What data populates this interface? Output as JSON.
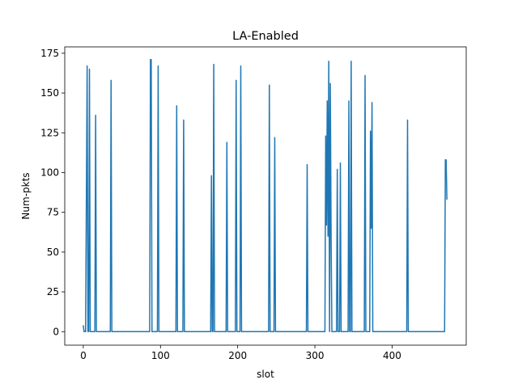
{
  "chart_data": {
    "type": "line",
    "title": "LA-Enabled",
    "xlabel": "slot",
    "ylabel": "Num-pkts",
    "xlim": [
      -24,
      496
    ],
    "ylim": [
      -8.5,
      179
    ],
    "xticks": [
      0,
      100,
      200,
      300,
      400
    ],
    "yticks": [
      0,
      25,
      50,
      75,
      100,
      125,
      150,
      175
    ],
    "grid": false,
    "legend": "none",
    "series": [
      {
        "color": "#1f77b4",
        "points": [
          [
            0,
            4
          ],
          [
            1,
            0
          ],
          [
            3,
            0
          ],
          [
            5,
            167
          ],
          [
            6,
            0
          ],
          [
            7,
            0
          ],
          [
            8,
            165
          ],
          [
            9,
            0
          ],
          [
            15,
            0
          ],
          [
            16,
            136
          ],
          [
            17,
            0
          ],
          [
            35,
            0
          ],
          [
            36,
            158
          ],
          [
            37,
            0
          ],
          [
            86,
            0
          ],
          [
            87,
            171
          ],
          [
            88,
            171
          ],
          [
            89,
            0
          ],
          [
            96,
            0
          ],
          [
            97,
            167
          ],
          [
            98,
            0
          ],
          [
            120,
            0
          ],
          [
            121,
            142
          ],
          [
            122,
            0
          ],
          [
            129,
            0
          ],
          [
            130,
            133
          ],
          [
            131,
            0
          ],
          [
            165,
            0
          ],
          [
            166,
            98
          ],
          [
            167,
            0
          ],
          [
            168,
            0
          ],
          [
            169,
            168
          ],
          [
            170,
            0
          ],
          [
            185,
            0
          ],
          [
            186,
            119
          ],
          [
            187,
            0
          ],
          [
            197,
            0
          ],
          [
            198,
            158
          ],
          [
            199,
            0
          ],
          [
            203,
            0
          ],
          [
            204,
            167
          ],
          [
            205,
            0
          ],
          [
            240,
            0
          ],
          [
            241,
            155
          ],
          [
            242,
            0
          ],
          [
            247,
            0
          ],
          [
            248,
            122
          ],
          [
            249,
            0
          ],
          [
            289,
            0
          ],
          [
            290,
            105
          ],
          [
            291,
            0
          ],
          [
            313,
            0
          ],
          [
            314,
            123
          ],
          [
            315,
            67
          ],
          [
            316,
            145
          ],
          [
            317,
            60
          ],
          [
            318,
            170
          ],
          [
            319,
            0
          ],
          [
            320,
            156
          ],
          [
            321,
            60
          ],
          [
            322,
            0
          ],
          [
            328,
            0
          ],
          [
            329,
            102
          ],
          [
            330,
            0
          ],
          [
            332,
            0
          ],
          [
            333,
            106
          ],
          [
            334,
            0
          ],
          [
            343,
            0
          ],
          [
            344,
            145
          ],
          [
            345,
            0
          ],
          [
            346,
            0
          ],
          [
            347,
            170
          ],
          [
            348,
            0
          ],
          [
            364,
            0
          ],
          [
            365,
            161
          ],
          [
            366,
            0
          ],
          [
            371,
            0
          ],
          [
            372,
            126
          ],
          [
            373,
            65
          ],
          [
            374,
            144
          ],
          [
            375,
            0
          ],
          [
            419,
            0
          ],
          [
            420,
            133
          ],
          [
            421,
            0
          ],
          [
            468,
            0
          ],
          [
            469,
            108
          ],
          [
            470,
            108
          ],
          [
            471,
            83
          ]
        ]
      }
    ]
  }
}
